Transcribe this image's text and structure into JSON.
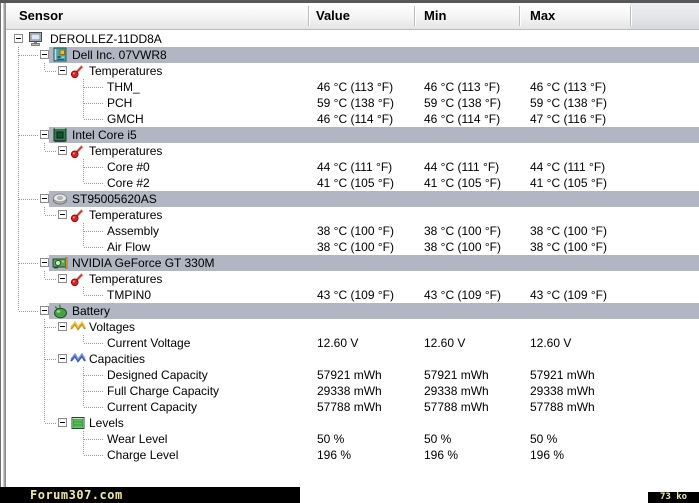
{
  "header": {
    "columns": [
      {
        "id": "sensor",
        "label": "Sensor"
      },
      {
        "id": "value",
        "label": "Value"
      },
      {
        "id": "min",
        "label": "Min"
      },
      {
        "id": "max",
        "label": "Max"
      }
    ]
  },
  "tree": [
    {
      "label": "DEROLLEZ-11DD8A",
      "icon": "computer-icon",
      "expandable": true,
      "children": [
        {
          "label": "Dell Inc. 07VWR8",
          "icon": "mainboard-icon",
          "highlighted": true,
          "expandable": true,
          "children": [
            {
              "label": "Temperatures",
              "icon": "thermometer-icon",
              "expandable": true,
              "children": [
                {
                  "label": "THM_",
                  "value": "46 °C (113 °F)",
                  "min": "46 °C (113 °F)",
                  "max": "46 °C (113 °F)"
                },
                {
                  "label": "PCH",
                  "value": "59 °C (138 °F)",
                  "min": "59 °C (138 °F)",
                  "max": "59 °C (138 °F)"
                },
                {
                  "label": "GMCH",
                  "value": "46 °C (114 °F)",
                  "min": "46 °C (114 °F)",
                  "max": "47 °C (116 °F)"
                }
              ]
            }
          ]
        },
        {
          "label": "Intel Core i5",
          "icon": "cpu-icon",
          "highlighted": true,
          "expandable": true,
          "children": [
            {
              "label": "Temperatures",
              "icon": "thermometer-icon",
              "expandable": true,
              "children": [
                {
                  "label": "Core #0",
                  "value": "44 °C (111 °F)",
                  "min": "44 °C (111 °F)",
                  "max": "44 °C (111 °F)"
                },
                {
                  "label": "Core #2",
                  "value": "41 °C (105 °F)",
                  "min": "41 °C (105 °F)",
                  "max": "41 °C (105 °F)"
                }
              ]
            }
          ]
        },
        {
          "label": "ST95005620AS",
          "icon": "hdd-icon",
          "highlighted": true,
          "expandable": true,
          "children": [
            {
              "label": "Temperatures",
              "icon": "thermometer-icon",
              "expandable": true,
              "children": [
                {
                  "label": "Assembly",
                  "value": "38 °C (100 °F)",
                  "min": "38 °C (100 °F)",
                  "max": "38 °C (100 °F)"
                },
                {
                  "label": "Air Flow",
                  "value": "38 °C (100 °F)",
                  "min": "38 °C (100 °F)",
                  "max": "38 °C (100 °F)"
                }
              ]
            }
          ]
        },
        {
          "label": "NVIDIA GeForce GT 330M",
          "icon": "gpu-icon",
          "highlighted": true,
          "expandable": true,
          "children": [
            {
              "label": "Temperatures",
              "icon": "thermometer-icon",
              "expandable": true,
              "children": [
                {
                  "label": "TMPIN0",
                  "value": "43 °C (109 °F)",
                  "min": "43 °C (109 °F)",
                  "max": "43 °C (109 °F)"
                }
              ]
            }
          ]
        },
        {
          "label": "Battery",
          "icon": "battery-icon",
          "highlighted": true,
          "expandable": true,
          "children": [
            {
              "label": "Voltages",
              "icon": "voltage-yellow-icon",
              "expandable": true,
              "children": [
                {
                  "label": "Current Voltage",
                  "value": "12.60 V",
                  "min": "12.60 V",
                  "max": "12.60 V"
                }
              ]
            },
            {
              "label": "Capacities",
              "icon": "capacity-blue-icon",
              "expandable": true,
              "children": [
                {
                  "label": "Designed Capacity",
                  "value": "57921 mWh",
                  "min": "57921 mWh",
                  "max": "57921 mWh"
                },
                {
                  "label": "Full Charge Capacity",
                  "value": "29338 mWh",
                  "min": "29338 mWh",
                  "max": "29338 mWh"
                },
                {
                  "label": "Current Capacity",
                  "value": "57788 mWh",
                  "min": "57788 mWh",
                  "max": "57788 mWh"
                }
              ]
            },
            {
              "label": "Levels",
              "icon": "levels-icon",
              "expandable": true,
              "children": [
                {
                  "label": "Wear Level",
                  "value": "50 %",
                  "min": "50 %",
                  "max": "50 %"
                },
                {
                  "label": "Charge Level",
                  "value": "196 %",
                  "min": "196 %",
                  "max": "196 %"
                }
              ]
            }
          ]
        }
      ]
    }
  ],
  "watermarks": {
    "bottom_left": "Forum307.com",
    "bottom_right": "73 ko"
  },
  "colors": {
    "highlight": "#b2b6c2",
    "watermark_bg": "#000000",
    "watermark_text": "#eee9a6"
  }
}
